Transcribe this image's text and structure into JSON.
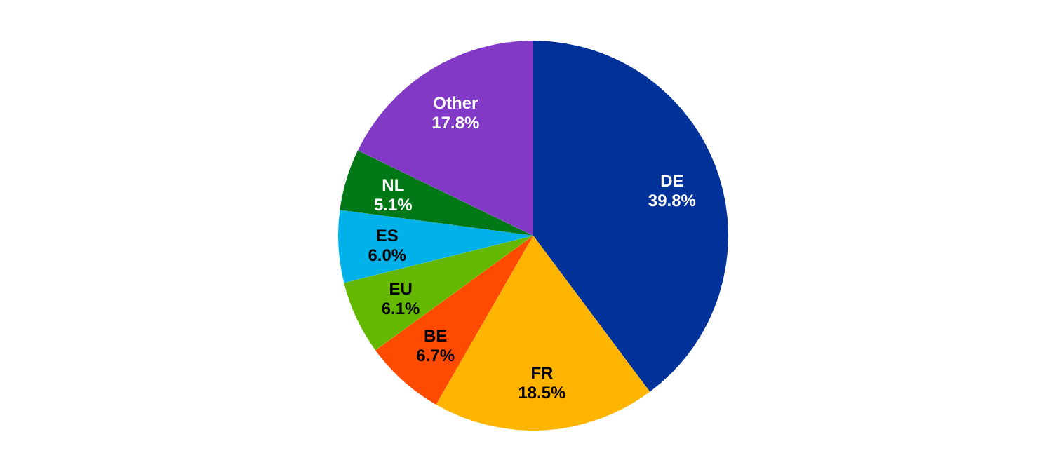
{
  "chart_data": {
    "type": "pie",
    "categories": [
      "DE",
      "FR",
      "BE",
      "EU",
      "ES",
      "NL",
      "Other"
    ],
    "values": [
      39.8,
      18.5,
      6.7,
      6.1,
      6.0,
      5.1,
      17.8
    ],
    "value_labels": [
      "39.8%",
      "18.5%",
      "6.7%",
      "6.1%",
      "6.0%",
      "5.1%",
      "17.8%"
    ],
    "colors": [
      "#003299",
      "#ffb400",
      "#ff4b00",
      "#65b800",
      "#00b1ea",
      "#007816",
      "#8139c6"
    ],
    "legend": false
  }
}
